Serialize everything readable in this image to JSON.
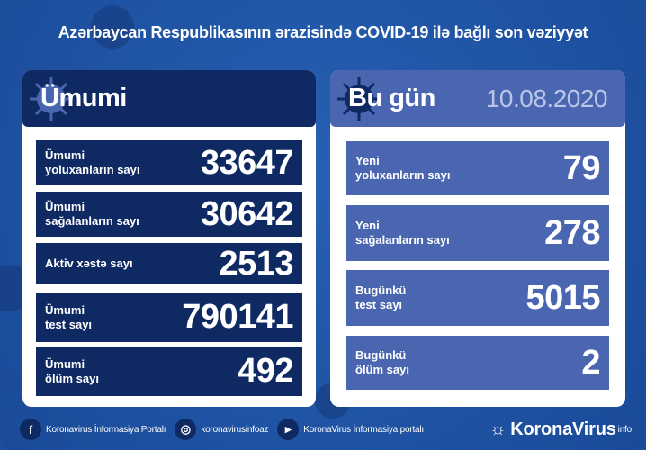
{
  "title": "Azərbaycan Respublikasının ərazisində COVID-19 ilə bağlı son vəziyyət",
  "total": {
    "heading": "Ümumi",
    "rows": [
      {
        "label1": "Ümumi",
        "label2": "yoluxanların sayı",
        "value": "33647"
      },
      {
        "label1": "Ümumi",
        "label2": "sağalanların sayı",
        "value": "30642"
      },
      {
        "label1": "Aktiv xəstə sayı",
        "label2": "",
        "value": "2513"
      },
      {
        "label1": "Ümumi",
        "label2": "test sayı",
        "value": "790141"
      },
      {
        "label1": "Ümumi",
        "label2": "ölüm sayı",
        "value": "492"
      }
    ]
  },
  "today": {
    "heading": "Bu gün",
    "date": "10.08.2020",
    "rows": [
      {
        "label1": "Yeni",
        "label2": "yoluxanların sayı",
        "value": "79"
      },
      {
        "label1": "Yeni",
        "label2": "sağalanların sayı",
        "value": "278"
      },
      {
        "label1": "Bugünkü",
        "label2": "test sayı",
        "value": "5015"
      },
      {
        "label1": "Bugünkü",
        "label2": "ölüm sayı",
        "value": "2"
      }
    ]
  },
  "footer": {
    "facebook": "Koronavirus İnformasiya Portalı",
    "instagram": "koronavirusinfoaz",
    "youtube": "KoronaVirus İnformasiya portalı",
    "brand": "KoronaVirus",
    "brand_sup": "info"
  },
  "colors": {
    "background": "#1d4f9f",
    "dark_navy": "#0f2a63",
    "accent_blue": "#4b66b1"
  }
}
